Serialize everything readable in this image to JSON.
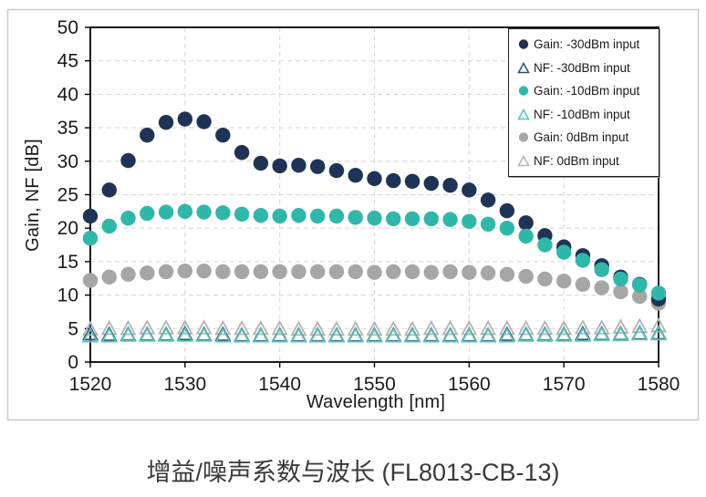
{
  "chart_data": {
    "type": "scatter",
    "title": "增益/噪声系数与波长 (FL8013-CB-13)",
    "xlabel": "Wavelength [nm]",
    "ylabel": "Gain, NF [dB]",
    "xlim": [
      1520,
      1580
    ],
    "ylim": [
      0,
      50
    ],
    "x_ticks": [
      1520,
      1530,
      1540,
      1550,
      1560,
      1570,
      1580
    ],
    "y_ticks": [
      0,
      5,
      10,
      15,
      20,
      25,
      30,
      35,
      40,
      45,
      50
    ],
    "grid": "dashed-lightgray",
    "legend_position": "top-right",
    "colors": {
      "navy": "#1f3356",
      "navy_outline": "#2e4a7a",
      "teal": "#2fb8a9",
      "teal_outline": "#55c6b8",
      "gray": "#a6a6a6",
      "gray_outline": "#b3b3b3",
      "gridline": "#d9d9d9",
      "axis": "#000000",
      "tick_text": "#1a1a1a",
      "frame_border": "#c9c9c9"
    },
    "x": [
      1520,
      1522,
      1524,
      1526,
      1528,
      1530,
      1532,
      1534,
      1536,
      1538,
      1540,
      1542,
      1544,
      1546,
      1548,
      1550,
      1552,
      1554,
      1556,
      1558,
      1560,
      1562,
      1564,
      1566,
      1568,
      1570,
      1572,
      1574,
      1576,
      1578,
      1580
    ],
    "series": [
      {
        "name": "Gain: -30dBm input",
        "marker": "circle",
        "color_key": "navy",
        "values": [
          21.8,
          25.7,
          30.1,
          33.9,
          35.8,
          36.3,
          35.9,
          33.9,
          31.3,
          29.7,
          29.3,
          29.4,
          29.2,
          28.6,
          27.9,
          27.4,
          27.1,
          27.0,
          26.7,
          26.4,
          25.7,
          24.2,
          22.6,
          20.8,
          18.9,
          17.2,
          15.9,
          14.4,
          12.7,
          11.6,
          9.4
        ]
      },
      {
        "name": "NF: -30dBm input",
        "marker": "triangle-open",
        "color_key": "navy_outline",
        "values": [
          4.2,
          4.1,
          4.1,
          4.1,
          4.1,
          4.2,
          4.1,
          4.1,
          4.0,
          4.0,
          4.0,
          4.0,
          4.0,
          4.0,
          4.0,
          4.0,
          4.0,
          4.0,
          4.0,
          4.0,
          4.0,
          4.0,
          4.1,
          4.1,
          4.1,
          4.1,
          4.2,
          4.2,
          4.2,
          4.3,
          4.3
        ]
      },
      {
        "name": "Gain: -10dBm input",
        "marker": "circle",
        "color_key": "teal",
        "values": [
          18.5,
          20.3,
          21.5,
          22.2,
          22.4,
          22.5,
          22.4,
          22.3,
          22.1,
          21.9,
          21.8,
          21.9,
          21.8,
          21.8,
          21.6,
          21.5,
          21.4,
          21.4,
          21.4,
          21.3,
          21.0,
          20.6,
          20.0,
          18.8,
          17.5,
          16.4,
          15.2,
          13.8,
          12.4,
          11.5,
          10.3
        ]
      },
      {
        "name": "NF: -10dBm input",
        "marker": "triangle-open",
        "color_key": "teal_outline",
        "values": [
          3.9,
          3.9,
          4.0,
          4.0,
          4.0,
          4.0,
          4.0,
          3.9,
          3.9,
          3.9,
          3.9,
          3.9,
          3.9,
          3.9,
          3.9,
          3.9,
          3.9,
          3.9,
          3.9,
          3.9,
          3.9,
          3.9,
          3.9,
          4.0,
          4.0,
          4.0,
          4.0,
          4.1,
          4.1,
          4.2,
          4.2
        ]
      },
      {
        "name": "Gain: 0dBm input",
        "marker": "circle",
        "color_key": "gray",
        "values": [
          12.2,
          12.7,
          13.1,
          13.3,
          13.5,
          13.6,
          13.6,
          13.5,
          13.5,
          13.5,
          13.5,
          13.5,
          13.5,
          13.5,
          13.5,
          13.4,
          13.5,
          13.5,
          13.4,
          13.5,
          13.4,
          13.3,
          13.1,
          12.8,
          12.4,
          12.1,
          11.6,
          11.1,
          10.5,
          9.8,
          8.8
        ]
      },
      {
        "name": "NF: 0dBm input",
        "marker": "triangle-open",
        "color_key": "gray_outline",
        "values": [
          4.9,
          5.0,
          5.0,
          5.1,
          5.1,
          5.1,
          5.1,
          5.0,
          5.0,
          5.0,
          5.0,
          4.9,
          4.9,
          4.9,
          4.9,
          4.9,
          4.9,
          4.9,
          5.0,
          5.0,
          5.0,
          5.0,
          5.0,
          5.0,
          5.0,
          5.0,
          5.1,
          5.1,
          5.2,
          5.3,
          5.4
        ]
      }
    ],
    "draw_order": [
      4,
      0,
      2,
      5,
      1,
      3
    ]
  }
}
